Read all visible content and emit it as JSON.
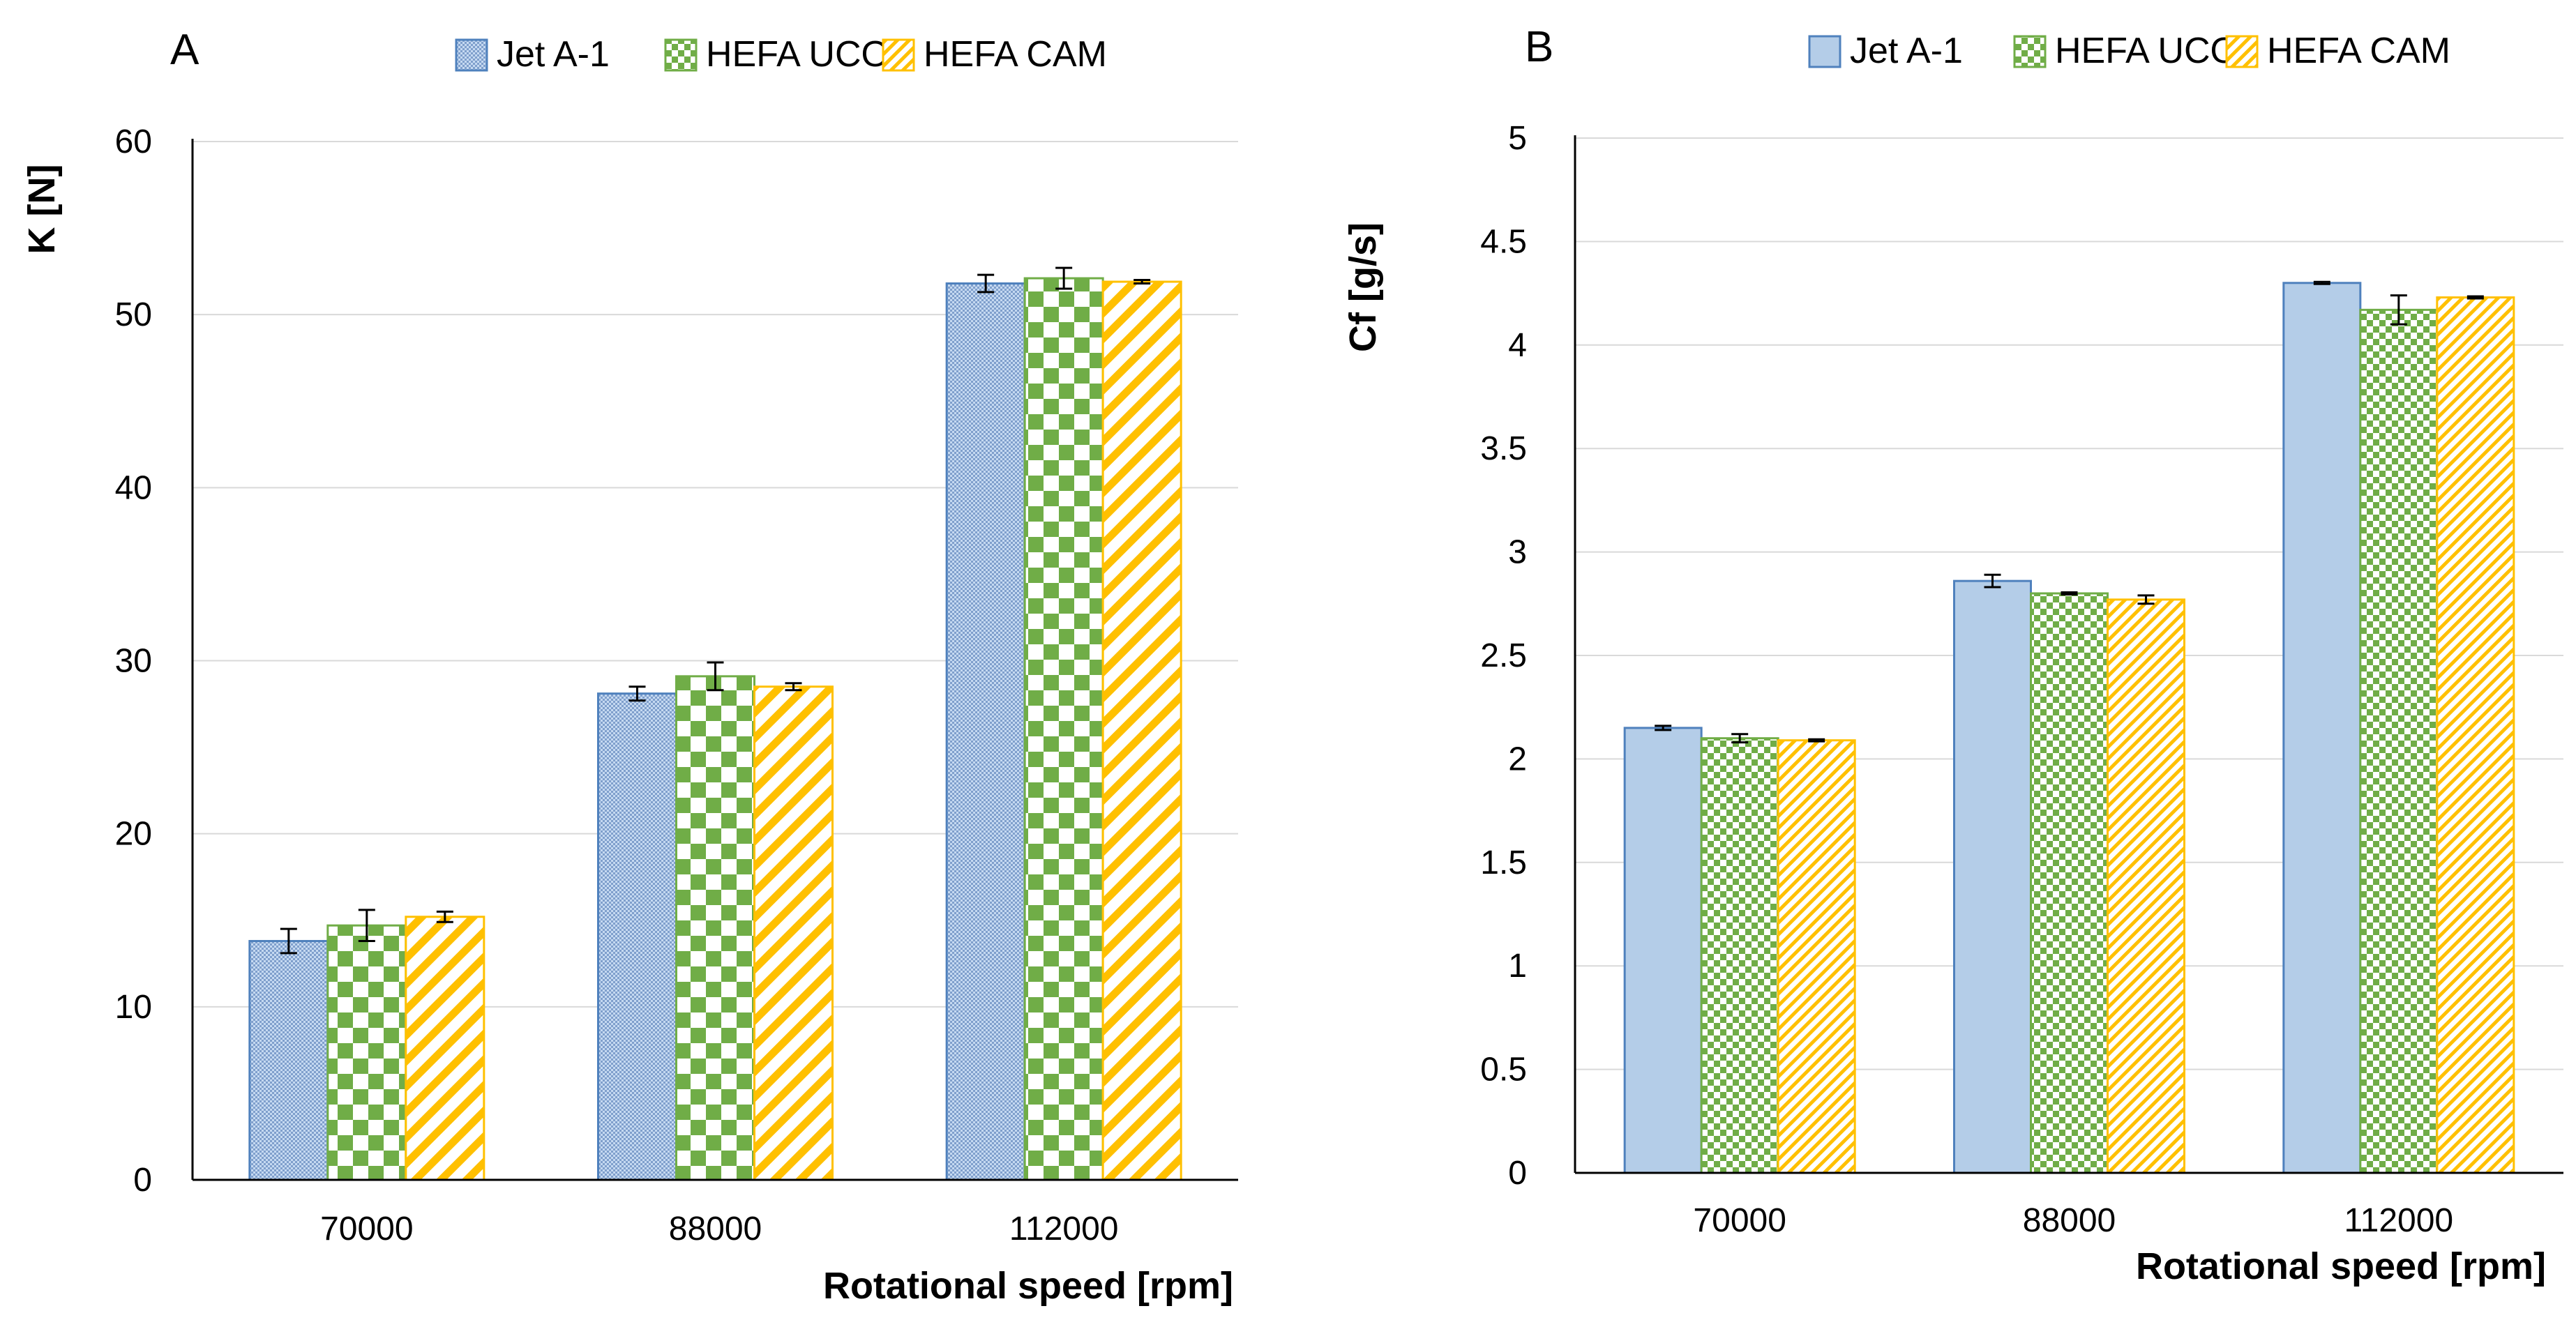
{
  "colors": {
    "jet": "#4f81bd",
    "jet_fill": "#c5d9f1",
    "uco": "#70ad47",
    "uco_fill": "#ffffff",
    "cam": "#ffc000",
    "cam_fill": "#ffffff",
    "grid": "#d9d9d9",
    "axis": "#000000"
  },
  "chart_data": [
    {
      "panel": "A",
      "type": "bar",
      "title": "",
      "xlabel": "Rotational speed [rpm]",
      "ylabel": "K [N]",
      "ylim": [
        0,
        60
      ],
      "yticks": [
        0,
        10,
        20,
        30,
        40,
        50,
        60
      ],
      "ytick_labels": [
        "0",
        "10",
        "20",
        "30",
        "40",
        "50",
        "60"
      ],
      "grid": true,
      "legend_position": "top-right",
      "categories": [
        "70000",
        "88000",
        "112000"
      ],
      "series": [
        {
          "name": "Jet A-1",
          "key": "jet",
          "pattern": "dots",
          "values": [
            13.8,
            28.1,
            51.8
          ],
          "errors": [
            0.7,
            0.4,
            0.5
          ]
        },
        {
          "name": "HEFA UCO",
          "key": "uco",
          "pattern": "checker",
          "values": [
            14.7,
            29.1,
            52.1
          ],
          "errors": [
            0.9,
            0.8,
            0.6
          ]
        },
        {
          "name": "HEFA CAM",
          "key": "cam",
          "pattern": "stripes",
          "values": [
            15.2,
            28.5,
            51.9
          ],
          "errors": [
            0.3,
            0.2,
            0.1
          ]
        }
      ]
    },
    {
      "panel": "B",
      "type": "bar",
      "title": "",
      "xlabel": "Rotational speed [rpm]",
      "ylabel": "Cf [g/s]",
      "ylim": [
        0,
        5
      ],
      "yticks": [
        0,
        0.5,
        1,
        1.5,
        2,
        2.5,
        3,
        3.5,
        4,
        4.5,
        5
      ],
      "ytick_labels": [
        "0",
        "0.5",
        "1",
        "1.5",
        "2",
        "2.5",
        "3",
        "3.5",
        "4",
        "4.5",
        "5"
      ],
      "grid": true,
      "legend_position": "top-right",
      "categories": [
        "70000",
        "88000",
        "112000"
      ],
      "series": [
        {
          "name": "Jet A-1",
          "key": "jet",
          "pattern": "solid",
          "values": [
            2.15,
            2.86,
            4.3
          ],
          "errors": [
            0.01,
            0.03,
            0.005
          ]
        },
        {
          "name": "HEFA UCO",
          "key": "uco",
          "pattern": "checker",
          "values": [
            2.1,
            2.8,
            4.17
          ],
          "errors": [
            0.02,
            0.005,
            0.07
          ]
        },
        {
          "name": "HEFA CAM",
          "key": "cam",
          "pattern": "stripes",
          "values": [
            2.09,
            2.77,
            4.23
          ],
          "errors": [
            0.005,
            0.02,
            0.005
          ]
        }
      ]
    }
  ]
}
